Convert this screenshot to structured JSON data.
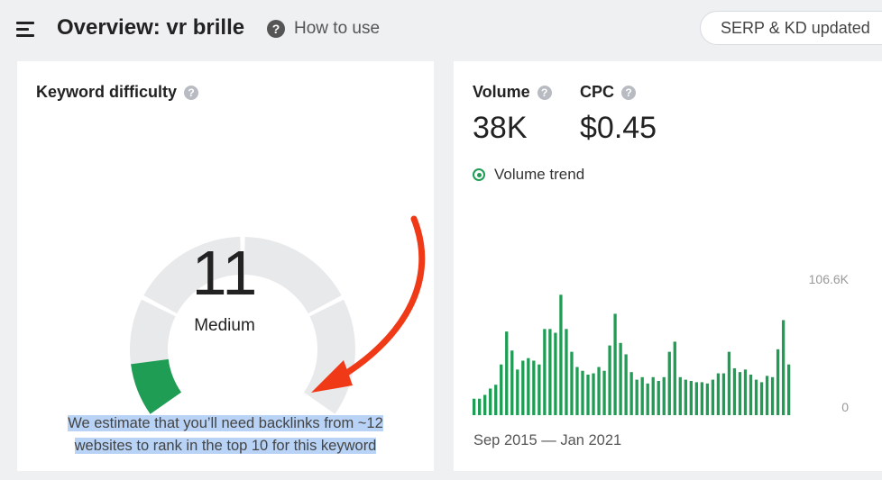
{
  "header": {
    "title": "Overview: vr brille",
    "how_to_use": "How to use",
    "how_to_use_icon": "?",
    "serp_status": "SERP & KD updated"
  },
  "keyword_difficulty": {
    "title": "Keyword difficulty",
    "help_icon": "?",
    "value": "11",
    "value_number": 11,
    "level": "Medium",
    "estimate_line1": "We estimate that you’ll need backlinks from ~12",
    "estimate_line2": "websites to rank in the top 10 for this keyword",
    "gauge_color": "#1f9d55",
    "gauge_track_color": "#e8e9eb",
    "annotation_arrow_color": "#f03a17"
  },
  "volume": {
    "label": "Volume",
    "value": "38K",
    "help_icon": "?"
  },
  "cpc": {
    "label": "CPC",
    "value": "$0.45",
    "help_icon": "?"
  },
  "trend": {
    "legend": "Volume trend",
    "date_range": "Sep 2015 — Jan 2021",
    "color": "#1f9d55"
  },
  "chart_data": {
    "type": "bar",
    "title": "",
    "xlabel": "",
    "ylabel": "",
    "ylim": [
      0,
      106600
    ],
    "y_tick_labels": [
      "106.6K",
      "0"
    ],
    "grid": false,
    "legend": "top-left",
    "series": [
      {
        "name": "Volume trend",
        "values": [
          13000,
          13000,
          16000,
          21000,
          24000,
          40000,
          66000,
          51000,
          36000,
          43000,
          45000,
          43000,
          40000,
          68000,
          68000,
          65000,
          95000,
          68000,
          50000,
          38000,
          35000,
          32000,
          33000,
          38000,
          35000,
          55000,
          80000,
          57000,
          48000,
          34000,
          28000,
          30000,
          25000,
          30000,
          27000,
          30000,
          50000,
          58000,
          30000,
          28000,
          27000,
          26000,
          26000,
          25000,
          28000,
          33000,
          33000,
          50000,
          37000,
          34000,
          36000,
          32000,
          28000,
          26000,
          31000,
          30000,
          52000,
          75000,
          40000
        ]
      }
    ]
  }
}
